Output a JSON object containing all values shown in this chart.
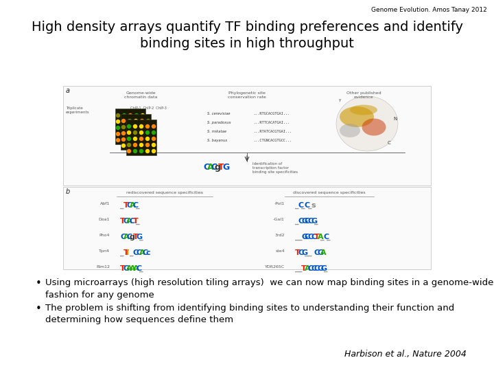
{
  "background_color": "#ffffff",
  "header_text": "Genome Evolution. Amos Tanay 2012",
  "header_fontsize": 6.5,
  "header_color": "#000000",
  "title": "High density arrays quantify TF binding preferences and identify\nbinding sites in high throughput",
  "title_fontsize": 14,
  "title_color": "#000000",
  "bullet1": "Using microarrays (high resolution tiling arrays)  we can now map binding sites in a genome-wide\nfashion for any genome",
  "bullet2": "The problem is shifting from identifying binding sites to understanding their function and\ndetermining how sequences define them",
  "bullet_fontsize": 9.5,
  "bullet_color": "#000000",
  "citation": "Harbison et al., Nature 2004",
  "citation_fontsize": 9,
  "citation_color": "#000000"
}
